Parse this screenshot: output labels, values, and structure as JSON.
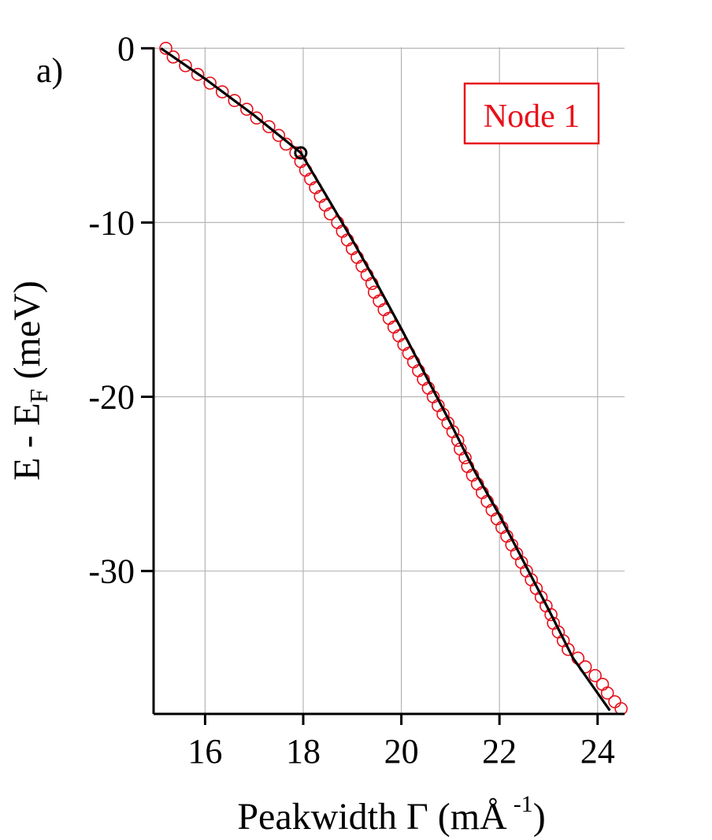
{
  "panel_label": "a)",
  "chart_data": {
    "type": "scatter",
    "xlabel": {
      "main": "Peakwidth Γ (mÅ",
      "superscript": "-1",
      "close": ")"
    },
    "ylabel": {
      "main": "E - E",
      "subscript": "F",
      "unit": " (meV)"
    },
    "xlim": [
      14.95,
      24.55
    ],
    "ylim": [
      -38.2,
      0.6
    ],
    "x_ticks": [
      16,
      18,
      20,
      22,
      24
    ],
    "y_ticks": [
      0,
      -10,
      -20,
      -30
    ],
    "grid": true,
    "legend": {
      "label": "Node 1",
      "placement": "top-right",
      "color": "#e8101a"
    },
    "colors": {
      "markers": "#e8101a",
      "fit_line": "#000000",
      "kink_marker": "#000000",
      "grid": "#b4b4b4",
      "axes": "#000000"
    },
    "series": [
      {
        "name": "Node 1",
        "kind": "markers",
        "points": [
          [
            15.2,
            0.0
          ],
          [
            15.35,
            -0.5
          ],
          [
            15.6,
            -1.0
          ],
          [
            15.85,
            -1.5
          ],
          [
            16.1,
            -2.0
          ],
          [
            16.35,
            -2.5
          ],
          [
            16.6,
            -3.0
          ],
          [
            16.85,
            -3.5
          ],
          [
            17.05,
            -4.0
          ],
          [
            17.3,
            -4.5
          ],
          [
            17.5,
            -5.0
          ],
          [
            17.65,
            -5.5
          ],
          [
            17.85,
            -6.0
          ],
          [
            17.95,
            -6.5
          ],
          [
            18.05,
            -7.0
          ],
          [
            18.15,
            -7.5
          ],
          [
            18.25,
            -8.0
          ],
          [
            18.35,
            -8.5
          ],
          [
            18.45,
            -9.0
          ],
          [
            18.55,
            -9.5
          ],
          [
            18.7,
            -10.0
          ],
          [
            18.8,
            -10.5
          ],
          [
            18.9,
            -11.0
          ],
          [
            19.0,
            -11.5
          ],
          [
            19.1,
            -12.0
          ],
          [
            19.2,
            -12.5
          ],
          [
            19.3,
            -13.0
          ],
          [
            19.4,
            -13.5
          ],
          [
            19.45,
            -14.0
          ],
          [
            19.55,
            -14.5
          ],
          [
            19.65,
            -15.0
          ],
          [
            19.75,
            -15.5
          ],
          [
            19.85,
            -16.0
          ],
          [
            19.95,
            -16.5
          ],
          [
            20.05,
            -17.0
          ],
          [
            20.15,
            -17.5
          ],
          [
            20.25,
            -18.0
          ],
          [
            20.35,
            -18.5
          ],
          [
            20.45,
            -19.0
          ],
          [
            20.55,
            -19.5
          ],
          [
            20.65,
            -20.0
          ],
          [
            20.75,
            -20.5
          ],
          [
            20.85,
            -21.0
          ],
          [
            20.95,
            -21.5
          ],
          [
            21.05,
            -22.0
          ],
          [
            21.15,
            -22.5
          ],
          [
            21.2,
            -23.0
          ],
          [
            21.3,
            -23.5
          ],
          [
            21.35,
            -24.0
          ],
          [
            21.45,
            -24.5
          ],
          [
            21.55,
            -25.0
          ],
          [
            21.65,
            -25.5
          ],
          [
            21.75,
            -26.0
          ],
          [
            21.85,
            -26.5
          ],
          [
            21.95,
            -27.0
          ],
          [
            22.05,
            -27.5
          ],
          [
            22.15,
            -28.0
          ],
          [
            22.25,
            -28.5
          ],
          [
            22.35,
            -29.0
          ],
          [
            22.45,
            -29.5
          ],
          [
            22.55,
            -30.0
          ],
          [
            22.65,
            -30.5
          ],
          [
            22.75,
            -31.0
          ],
          [
            22.85,
            -31.5
          ],
          [
            22.95,
            -32.0
          ],
          [
            23.05,
            -32.5
          ],
          [
            23.1,
            -33.0
          ],
          [
            23.2,
            -33.5
          ],
          [
            23.3,
            -34.0
          ],
          [
            23.4,
            -34.5
          ],
          [
            23.6,
            -35.0
          ],
          [
            23.75,
            -35.5
          ],
          [
            23.95,
            -36.0
          ],
          [
            24.1,
            -36.5
          ],
          [
            24.2,
            -37.0
          ],
          [
            24.35,
            -37.5
          ],
          [
            24.48,
            -37.9
          ]
        ]
      },
      {
        "kind": "line",
        "points": [
          [
            15.1,
            0.0
          ],
          [
            16.0,
            -1.75
          ],
          [
            17.0,
            -3.85
          ],
          [
            17.95,
            -6.0
          ],
          [
            18.5,
            -8.6
          ],
          [
            19.0,
            -11.0
          ],
          [
            19.5,
            -13.5
          ],
          [
            20.0,
            -16.1
          ],
          [
            20.5,
            -18.8
          ],
          [
            21.0,
            -21.5
          ],
          [
            21.5,
            -24.3
          ],
          [
            22.0,
            -26.8
          ],
          [
            22.5,
            -29.5
          ],
          [
            23.0,
            -32.2
          ],
          [
            23.5,
            -35.0
          ],
          [
            24.0,
            -37.0
          ],
          [
            24.25,
            -38.0
          ]
        ]
      }
    ],
    "kink_point": [
      17.95,
      -6.0
    ]
  }
}
